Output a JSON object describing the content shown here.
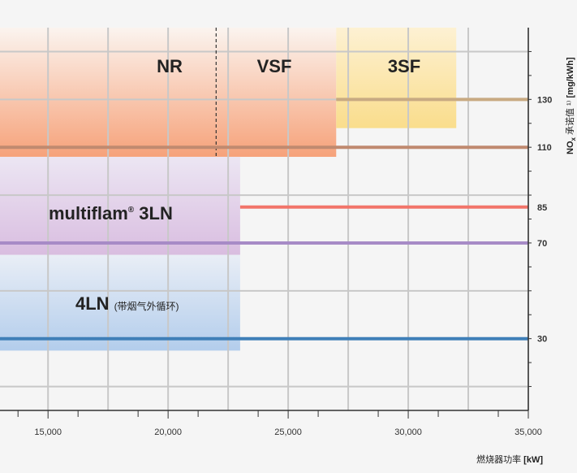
{
  "chart_data": {
    "type": "bar",
    "xlabel": "燃烧器功率",
    "xunit": "[kW]",
    "ylabel_prefix": "NO",
    "ylabel_sub": "x",
    "ylabel_mid": " 承诺值 ¹⁾ ",
    "ylabel_unit": "[mg/kWh]",
    "x_ticks": [
      15000,
      20000,
      25000,
      30000,
      35000
    ],
    "x_tick_labels": [
      "15,000",
      "20,000",
      "25,000",
      "30,000",
      "35,000"
    ],
    "xlim": [
      13000,
      35000
    ],
    "ylim": [
      0,
      160
    ],
    "grid": true,
    "zones": [
      {
        "name": "NR",
        "x_from": 13000,
        "x_to": 22000,
        "y_from": 106,
        "y_to": 160,
        "color_top": "#fbf4ef",
        "color_bottom": "#f6a27a"
      },
      {
        "name": "VSF",
        "x_from": 22000,
        "x_to": 27000,
        "y_from": 106,
        "y_to": 160,
        "color_top": "#fbf4ef",
        "color_bottom": "#f6a27a"
      },
      {
        "name": "3SF",
        "x_from": 27000,
        "x_to": 32000,
        "y_from": 118,
        "y_to": 160,
        "color_top": "#fdf1d3",
        "color_bottom": "#fadd8c"
      },
      {
        "name": "multiflam",
        "name_sup": "®",
        "name_suffix": " 3LN",
        "x_from": 13000,
        "x_to": 23000,
        "y_from": 65,
        "y_to": 106,
        "color_top": "#ece6f3",
        "color_bottom": "#d9bde0"
      },
      {
        "name": "4LN",
        "name_sub": "(带烟气外循环)",
        "x_from": 13000,
        "x_to": 23000,
        "y_from": 25,
        "y_to": 65,
        "color_top": "#e9eef6",
        "color_bottom": "#b3cdec"
      }
    ],
    "nox_levels": [
      {
        "value": 130,
        "label": "130",
        "x_from": 27000,
        "color": "#c8aa82"
      },
      {
        "value": 110,
        "label": "110",
        "x_from": 13000,
        "color": "#c08a70"
      },
      {
        "value": 85,
        "label": "85",
        "x_from": 23000,
        "color": "#f2756a"
      },
      {
        "value": 70,
        "label": "70",
        "x_from": 13000,
        "color": "#a78bc6"
      },
      {
        "value": 30,
        "label": "30",
        "x_from": 13000,
        "color": "#3f7fb8"
      }
    ],
    "divider_x": 22000
  }
}
